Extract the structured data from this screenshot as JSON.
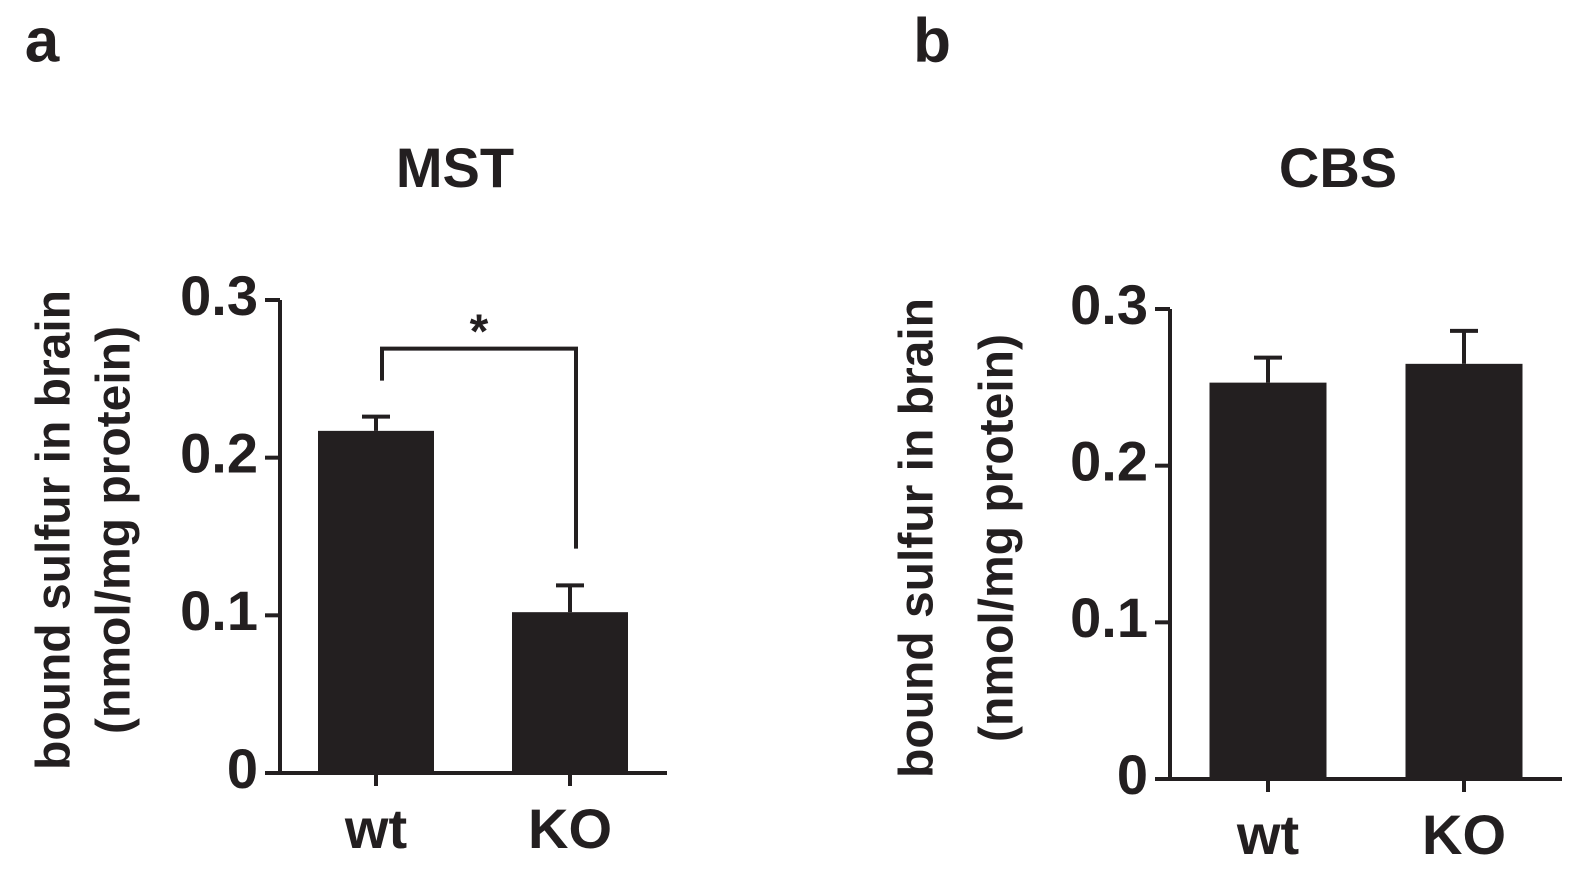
{
  "chart_data": [
    {
      "type": "bar",
      "panel": "a",
      "title": "MST",
      "ylabel": [
        "bound sulfur in brain",
        "(nmol/mg protein)"
      ],
      "categories": [
        "wt",
        "KO"
      ],
      "values": [
        0.217,
        0.102
      ],
      "errors": [
        0.009,
        0.017
      ],
      "color": "#231f20",
      "ylim": [
        0,
        0.3
      ],
      "yticks": [
        0,
        0.1,
        0.2,
        0.3
      ],
      "annotation": "*"
    },
    {
      "type": "bar",
      "panel": "b",
      "title": "CBS",
      "ylabel": [
        "bound sulfur in brain",
        "(nmol/mg protein)"
      ],
      "categories": [
        "wt",
        "KO"
      ],
      "values": [
        0.253,
        0.265
      ],
      "errors": [
        0.016,
        0.021
      ],
      "color": "#231f20",
      "ylim": [
        0,
        0.3
      ],
      "yticks": [
        0,
        0.1,
        0.2,
        0.3
      ]
    }
  ]
}
